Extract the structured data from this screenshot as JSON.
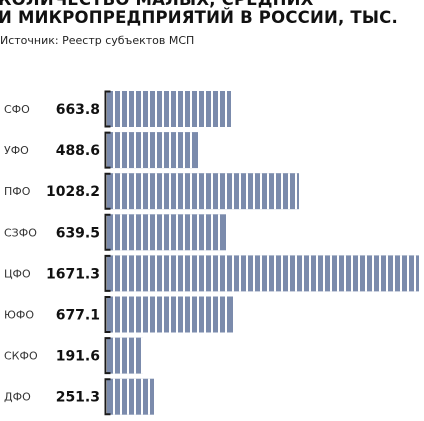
{
  "title_lines": [
    "КОЛИЧЕСТВО МАЛЫХ, СРЕДНИХ",
    "И МИКРОПРЕДПРИЯТИЙ В РОССИИ, ТЫС."
  ],
  "source": "Источник: Реестр субъектов МСП",
  "colors": {
    "bar": "#7b8bac",
    "stripe": "#ffffff",
    "bracket": "#1a1a1a"
  },
  "chart_data": {
    "type": "bar",
    "orientation": "horizontal",
    "title": "КОЛИЧЕСТВО МАЛЫХ, СРЕДНИХ И МИКРОПРЕДПРИЯТИЙ В РОССИИ, ТЫС.",
    "categories": [
      "ЦФО",
      "ПФО",
      "ЮФО",
      "СФО",
      "СЗФО",
      "УФО",
      "ДФО",
      "СКФО"
    ],
    "values": [
      1671.3,
      1028.2,
      677.1,
      663.8,
      639.5,
      488.6,
      251.3,
      191.6
    ],
    "display_order": [
      "СФО",
      "УФО",
      "ПФО",
      "СЗФО",
      "ЦФО",
      "ЮФО",
      "СКФО",
      "ДФО"
    ],
    "xlabel": "",
    "ylabel": "",
    "grid": false,
    "legend": "none"
  }
}
